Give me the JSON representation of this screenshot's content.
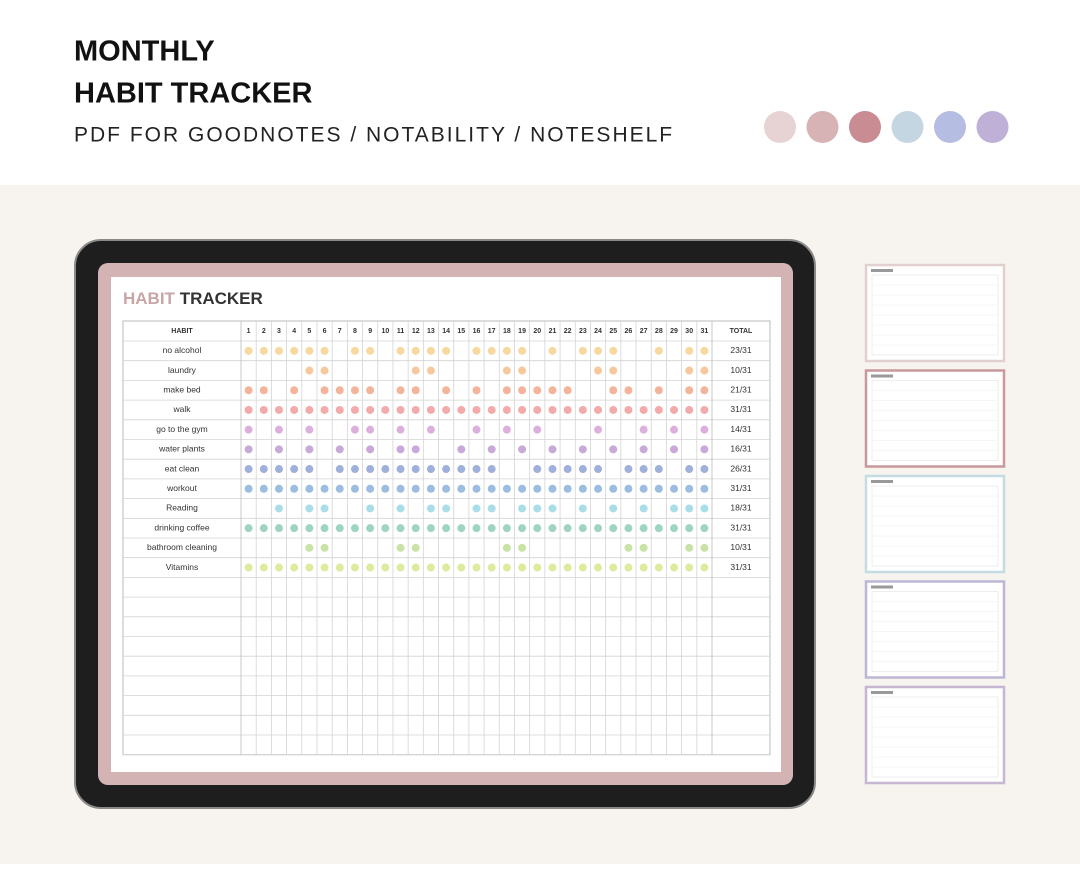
{
  "header": {
    "title_lines": [
      "MONTHLY",
      "HABIT TRACKER"
    ],
    "subtitle": "PDF FOR GOODNOTES / NOTABILITY / NOTESHELF",
    "swatches": [
      "#e8d3d4",
      "#d8b3b5",
      "#c98c93",
      "#c5d6e3",
      "#b6bde3",
      "#bfb0d8"
    ]
  },
  "tracker": {
    "title_parts": [
      "HABIT",
      "TRACKER"
    ],
    "columns": {
      "habit": "HABIT",
      "days": [
        1,
        2,
        3,
        4,
        5,
        6,
        7,
        8,
        9,
        10,
        11,
        12,
        13,
        14,
        15,
        16,
        17,
        18,
        19,
        20,
        21,
        22,
        23,
        24,
        25,
        26,
        27,
        28,
        29,
        30,
        31
      ],
      "total": "TOTAL"
    },
    "habits": [
      {
        "name": "no alcohol",
        "total": "23/31",
        "color": "#f7d9a0",
        "days": [
          1,
          2,
          3,
          4,
          5,
          6,
          8,
          9,
          11,
          12,
          13,
          14,
          16,
          17,
          18,
          19,
          21,
          23,
          24,
          25,
          28,
          30,
          31
        ]
      },
      {
        "name": "laundry",
        "total": "10/31",
        "color": "#f6c99c",
        "days": [
          5,
          6,
          12,
          13,
          18,
          19,
          24,
          25,
          30,
          31
        ]
      },
      {
        "name": "make bed",
        "total": "21/31",
        "color": "#f4b49a",
        "days": [
          1,
          2,
          4,
          6,
          7,
          8,
          9,
          11,
          12,
          14,
          16,
          18,
          19,
          20,
          21,
          22,
          25,
          26,
          28,
          30,
          31
        ]
      },
      {
        "name": "walk",
        "total": "31/31",
        "color": "#f2aaab",
        "days": [
          1,
          2,
          3,
          4,
          5,
          6,
          7,
          8,
          9,
          10,
          11,
          12,
          13,
          14,
          15,
          16,
          17,
          18,
          19,
          20,
          21,
          22,
          23,
          24,
          25,
          26,
          27,
          28,
          29,
          30,
          31
        ]
      },
      {
        "name": "go to the gym",
        "total": "14/31",
        "color": "#dcb0dc",
        "days": [
          1,
          3,
          5,
          8,
          9,
          11,
          13,
          16,
          18,
          20,
          24,
          27,
          29,
          31
        ]
      },
      {
        "name": "water plants",
        "total": "16/31",
        "color": "#c8a9d9",
        "days": [
          1,
          3,
          5,
          7,
          9,
          11,
          12,
          15,
          17,
          19,
          21,
          23,
          25,
          27,
          29,
          31
        ]
      },
      {
        "name": "eat clean",
        "total": "26/31",
        "color": "#9fb0db",
        "days": [
          1,
          2,
          3,
          4,
          5,
          7,
          8,
          9,
          10,
          11,
          12,
          13,
          14,
          15,
          16,
          17,
          20,
          21,
          22,
          23,
          24,
          26,
          27,
          28,
          30,
          31
        ]
      },
      {
        "name": "workout",
        "total": "31/31",
        "color": "#9cbde0",
        "days": [
          1,
          2,
          3,
          4,
          5,
          6,
          7,
          8,
          9,
          10,
          11,
          12,
          13,
          14,
          15,
          16,
          17,
          18,
          19,
          20,
          21,
          22,
          23,
          24,
          25,
          26,
          27,
          28,
          29,
          30,
          31
        ]
      },
      {
        "name": "Reading",
        "total": "18/31",
        "color": "#a9dde8",
        "days": [
          3,
          5,
          6,
          9,
          11,
          13,
          14,
          16,
          17,
          19,
          20,
          21,
          23,
          25,
          27,
          29,
          30,
          31
        ]
      },
      {
        "name": "drinking coffee",
        "total": "31/31",
        "color": "#9fd5bf",
        "days": [
          1,
          2,
          3,
          4,
          5,
          6,
          7,
          8,
          9,
          10,
          11,
          12,
          13,
          14,
          15,
          16,
          17,
          18,
          19,
          20,
          21,
          22,
          23,
          24,
          25,
          26,
          27,
          28,
          29,
          30,
          31
        ]
      },
      {
        "name": "bathroom cleaning",
        "total": "10/31",
        "color": "#c9e2a6",
        "days": [
          5,
          6,
          11,
          12,
          18,
          19,
          26,
          27,
          30,
          31
        ]
      },
      {
        "name": "Vitamins",
        "total": "31/31",
        "color": "#dcec9e",
        "days": [
          1,
          2,
          3,
          4,
          5,
          6,
          7,
          8,
          9,
          10,
          11,
          12,
          13,
          14,
          15,
          16,
          17,
          18,
          19,
          20,
          21,
          22,
          23,
          24,
          25,
          26,
          27,
          28,
          29,
          30,
          31
        ]
      }
    ]
  },
  "thumbnails": [
    "#e2cfcf",
    "#c9989c",
    "#c4dde2",
    "#bdb6d6",
    "#c6b6d2"
  ]
}
